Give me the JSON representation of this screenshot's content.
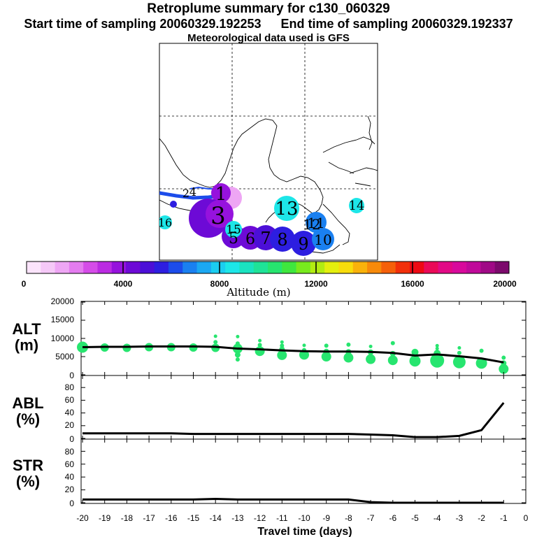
{
  "title": "Retroplume summary for c130_060329",
  "subtitle_start": "Start time of sampling 20060329.192253",
  "subtitle_end": "End time of sampling 20060329.192337",
  "subtitle_met": "Meteorological data used is GFS",
  "colorbar": {
    "label": "Altitude (m)",
    "ticks": [
      "0",
      "4000",
      "8000",
      "12000",
      "16000",
      "20000"
    ],
    "range": [
      0,
      20000
    ],
    "colors": [
      "#fbe4fb",
      "#f5c8f7",
      "#eea6f4",
      "#e47cef",
      "#d54ce8",
      "#bb2be2",
      "#9612dd",
      "#6d0ad6",
      "#4c0fd7",
      "#2d1ee0",
      "#1c4cea",
      "#1a80f0",
      "#1ba8f2",
      "#1bcdf0",
      "#1de6e8",
      "#1ae3c0",
      "#1fe398",
      "#27e56f",
      "#3fe73e",
      "#78ea1d",
      "#b2ec12",
      "#e4ef0e",
      "#f8dc0c",
      "#f9b20b",
      "#f78a0a",
      "#f5600a",
      "#f2300a",
      "#ee0a14",
      "#ea0a58",
      "#e20a86",
      "#d80a9c",
      "#c00a9a",
      "#a00a86",
      "#7c0a6c"
    ]
  },
  "map": {
    "day_labels": [
      {
        "text": "1",
        "color": "#6d0ad6"
      },
      {
        "text": "2",
        "color": "#6d0ad6"
      },
      {
        "text": "3",
        "color": "#6d0ad6"
      },
      {
        "text": "4",
        "color": "#4c0fd7"
      },
      {
        "text": "5",
        "color": "#5a0cd8"
      },
      {
        "text": "6",
        "color": "#5a0cd8"
      },
      {
        "text": "7",
        "color": "#4c0fd7"
      },
      {
        "text": "8",
        "color": "#2d1ee0"
      },
      {
        "text": "9",
        "color": "#2d1ee0"
      },
      {
        "text": "10",
        "color": "#1a80f0"
      },
      {
        "text": "11",
        "color": "#1a80f0"
      },
      {
        "text": "12",
        "color": "#1ba8f2"
      },
      {
        "text": "13",
        "color": "#1de6e8"
      },
      {
        "text": "14",
        "color": "#1bcdf0"
      },
      {
        "text": "15",
        "color": "#1de6e8"
      },
      {
        "text": "16",
        "color": "#1de6e8"
      }
    ]
  },
  "panels": {
    "alt": {
      "label_line1": "ALT",
      "label_line2": "(m)",
      "yticks": [
        "20000",
        "15000",
        "10000",
        "5000",
        "0"
      ]
    },
    "abl": {
      "label_line1": "ABL",
      "label_line2": "(%)",
      "yticks": [
        "80",
        "60",
        "40",
        "20",
        "0"
      ]
    },
    "str": {
      "label_line1": "STR",
      "label_line2": "(%)",
      "yticks": [
        "80",
        "60",
        "40",
        "20",
        "0"
      ]
    }
  },
  "xaxis": {
    "label": "Travel time (days)",
    "ticks": [
      "-20",
      "-19",
      "-18",
      "-17",
      "-16",
      "-15",
      "-14",
      "-13",
      "-12",
      "-11",
      "-10",
      "-9",
      "-8",
      "-7",
      "-6",
      "-5",
      "-4",
      "-3",
      "-2",
      "-1",
      "0"
    ]
  },
  "chart_data": [
    {
      "type": "line",
      "name": "ALT",
      "ylabel": "ALT (m)",
      "xlim": [
        -20,
        0
      ],
      "ylim": [
        0,
        20000
      ],
      "x": [
        -20,
        -19,
        -18,
        -17,
        -16,
        -15,
        -14,
        -13,
        -12,
        -11,
        -10,
        -9,
        -8,
        -7,
        -6,
        -5,
        -4,
        -3,
        -2,
        -1
      ],
      "values": [
        7600,
        7700,
        7700,
        7800,
        7800,
        7800,
        7700,
        7200,
        7000,
        6700,
        6500,
        6400,
        6400,
        6300,
        6000,
        5300,
        5600,
        5100,
        4500,
        3400
      ],
      "scatter_color": "#27e56f",
      "scatter": [
        {
          "x": -20,
          "y": 7600,
          "s": 8
        },
        {
          "x": -19,
          "y": 7500,
          "s": 6
        },
        {
          "x": -18,
          "y": 7400,
          "s": 6
        },
        {
          "x": -17,
          "y": 7600,
          "s": 6
        },
        {
          "x": -16,
          "y": 7600,
          "s": 6
        },
        {
          "x": -15,
          "y": 7500,
          "s": 6
        },
        {
          "x": -14,
          "y": 7400,
          "s": 6
        },
        {
          "x": -14,
          "y": 9000,
          "s": 3
        },
        {
          "x": -14,
          "y": 10600,
          "s": 2.5
        },
        {
          "x": -13,
          "y": 7200,
          "s": 7
        },
        {
          "x": -13,
          "y": 5500,
          "s": 4
        },
        {
          "x": -13,
          "y": 4200,
          "s": 3
        },
        {
          "x": -13,
          "y": 8600,
          "s": 3
        },
        {
          "x": -13,
          "y": 10500,
          "s": 2.5
        },
        {
          "x": -12,
          "y": 6500,
          "s": 7
        },
        {
          "x": -12,
          "y": 8200,
          "s": 3
        },
        {
          "x": -12,
          "y": 9400,
          "s": 2.5
        },
        {
          "x": -11,
          "y": 5400,
          "s": 7
        },
        {
          "x": -11,
          "y": 7000,
          "s": 4
        },
        {
          "x": -11,
          "y": 8000,
          "s": 3
        },
        {
          "x": -11,
          "y": 9000,
          "s": 2.5
        },
        {
          "x": -10,
          "y": 5500,
          "s": 7
        },
        {
          "x": -10,
          "y": 6800,
          "s": 3
        },
        {
          "x": -10,
          "y": 8100,
          "s": 2.5
        },
        {
          "x": -9,
          "y": 5000,
          "s": 7
        },
        {
          "x": -9,
          "y": 6400,
          "s": 4
        },
        {
          "x": -9,
          "y": 8000,
          "s": 3
        },
        {
          "x": -8,
          "y": 4700,
          "s": 7
        },
        {
          "x": -8,
          "y": 6300,
          "s": 4
        },
        {
          "x": -8,
          "y": 8300,
          "s": 3
        },
        {
          "x": -7,
          "y": 4300,
          "s": 7
        },
        {
          "x": -7,
          "y": 6200,
          "s": 4
        },
        {
          "x": -7,
          "y": 7800,
          "s": 2.5
        },
        {
          "x": -6,
          "y": 4000,
          "s": 7
        },
        {
          "x": -6,
          "y": 5800,
          "s": 4
        },
        {
          "x": -6,
          "y": 8700,
          "s": 3
        },
        {
          "x": -5,
          "y": 3800,
          "s": 8
        },
        {
          "x": -5,
          "y": 6200,
          "s": 5
        },
        {
          "x": -4,
          "y": 3900,
          "s": 10
        },
        {
          "x": -4,
          "y": 5900,
          "s": 5
        },
        {
          "x": -4,
          "y": 7200,
          "s": 2.5
        },
        {
          "x": -4,
          "y": 8000,
          "s": 2.5
        },
        {
          "x": -3,
          "y": 3500,
          "s": 9
        },
        {
          "x": -3,
          "y": 6000,
          "s": 3
        },
        {
          "x": -3,
          "y": 7400,
          "s": 2.5
        },
        {
          "x": -2,
          "y": 3200,
          "s": 8
        },
        {
          "x": -2,
          "y": 6600,
          "s": 3
        },
        {
          "x": -1,
          "y": 1600,
          "s": 7
        },
        {
          "x": -1,
          "y": 3200,
          "s": 4
        },
        {
          "x": -1,
          "y": 4700,
          "s": 3
        }
      ]
    },
    {
      "type": "line",
      "name": "ABL",
      "ylabel": "ABL (%)",
      "xlim": [
        -20,
        0
      ],
      "ylim": [
        0,
        100
      ],
      "x": [
        -20,
        -19,
        -18,
        -17,
        -16,
        -15,
        -14,
        -13,
        -12,
        -11,
        -10,
        -9,
        -8,
        -7,
        -6,
        -5,
        -4,
        -3,
        -2,
        -1
      ],
      "values": [
        8,
        8,
        8,
        8,
        8,
        7,
        7,
        7,
        7,
        7,
        7,
        7,
        7,
        6,
        5,
        2,
        2,
        4,
        13,
        56
      ]
    },
    {
      "type": "line",
      "name": "STR",
      "ylabel": "STR (%)",
      "xlim": [
        -20,
        0
      ],
      "ylim": [
        0,
        100
      ],
      "x": [
        -20,
        -19,
        -18,
        -17,
        -16,
        -15,
        -14,
        -13,
        -12,
        -11,
        -10,
        -9,
        -8,
        -7,
        -6,
        -5,
        -4,
        -3,
        -2,
        -1
      ],
      "values": [
        5,
        5,
        5,
        5,
        5,
        5,
        6,
        5,
        5,
        5,
        5,
        5,
        5,
        1,
        0,
        0,
        0,
        0,
        0,
        0
      ]
    }
  ]
}
